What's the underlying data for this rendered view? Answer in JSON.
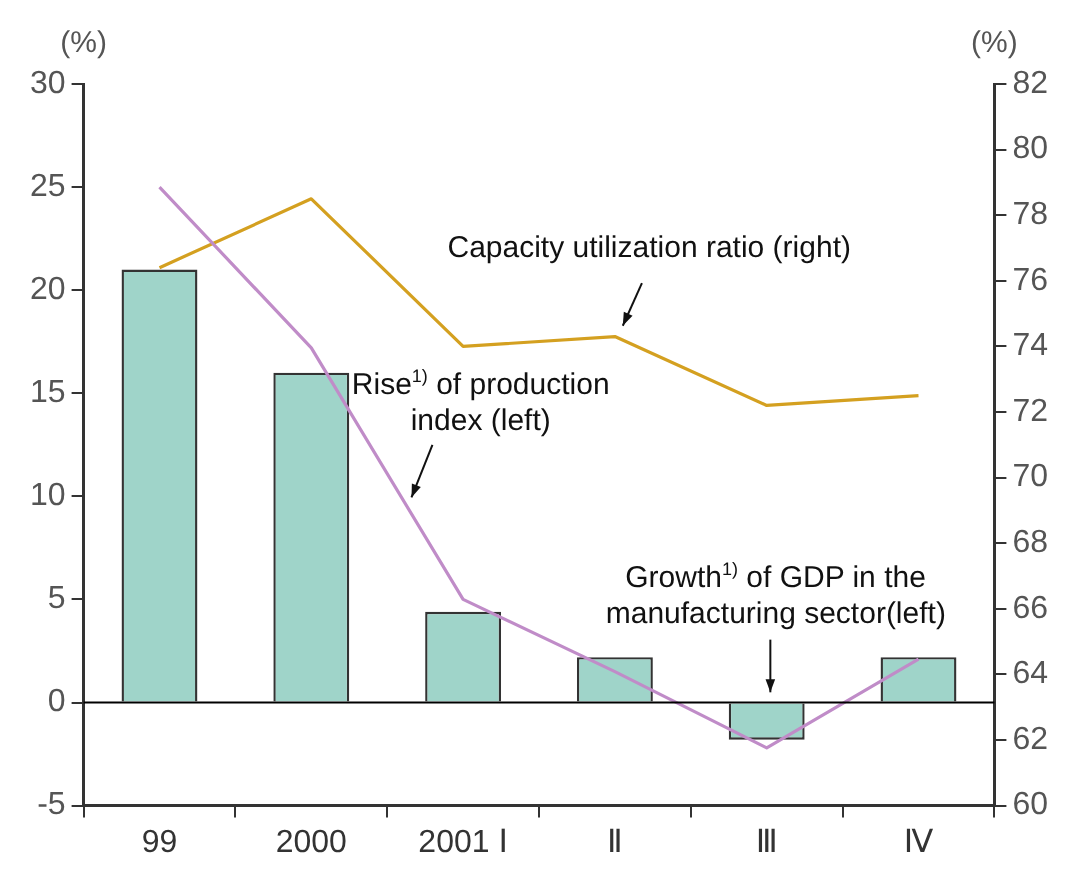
{
  "chart_data": {
    "type": "bar",
    "ylabel": "(%)",
    "y2label": "(%)",
    "categories": [
      "99",
      "2000",
      "2001 Ⅰ",
      "Ⅱ",
      "Ⅲ",
      "Ⅳ"
    ],
    "series": [
      {
        "name": "Growth$^{1)}$ of GDP in the manufacturing sector(left)",
        "color": "#9fd4c9",
        "values": [
          21,
          16,
          4.4,
          2.2,
          -1.8,
          2.2
        ]
      },
      {
        "type": "line",
        "name": "Rise$^{1)}$ of production index (left)",
        "color": "#c08cc8",
        "values": [
          25,
          17.2,
          5,
          1.5,
          -2.2,
          2.1
        ]
      },
      {
        "type": "line",
        "axis": "y2",
        "name": "Capacity utilization ratio (right)",
        "color": "#d4a020",
        "values": [
          76.4,
          78.5,
          74,
          74.3,
          72.2,
          72.5
        ]
      }
    ],
    "ylim": [
      -5,
      30
    ],
    "yticks": [
      -5,
      0,
      5,
      10,
      15,
      20,
      25,
      30
    ],
    "y2lim": [
      60,
      82
    ],
    "y2ticks": [
      60,
      62,
      64,
      66,
      68,
      70,
      72,
      74,
      76,
      78,
      80,
      82
    ],
    "ref_lines": [
      {
        "axis": "y",
        "value": 0,
        "color": "#000000"
      }
    ],
    "grid": false,
    "legend": false
  }
}
